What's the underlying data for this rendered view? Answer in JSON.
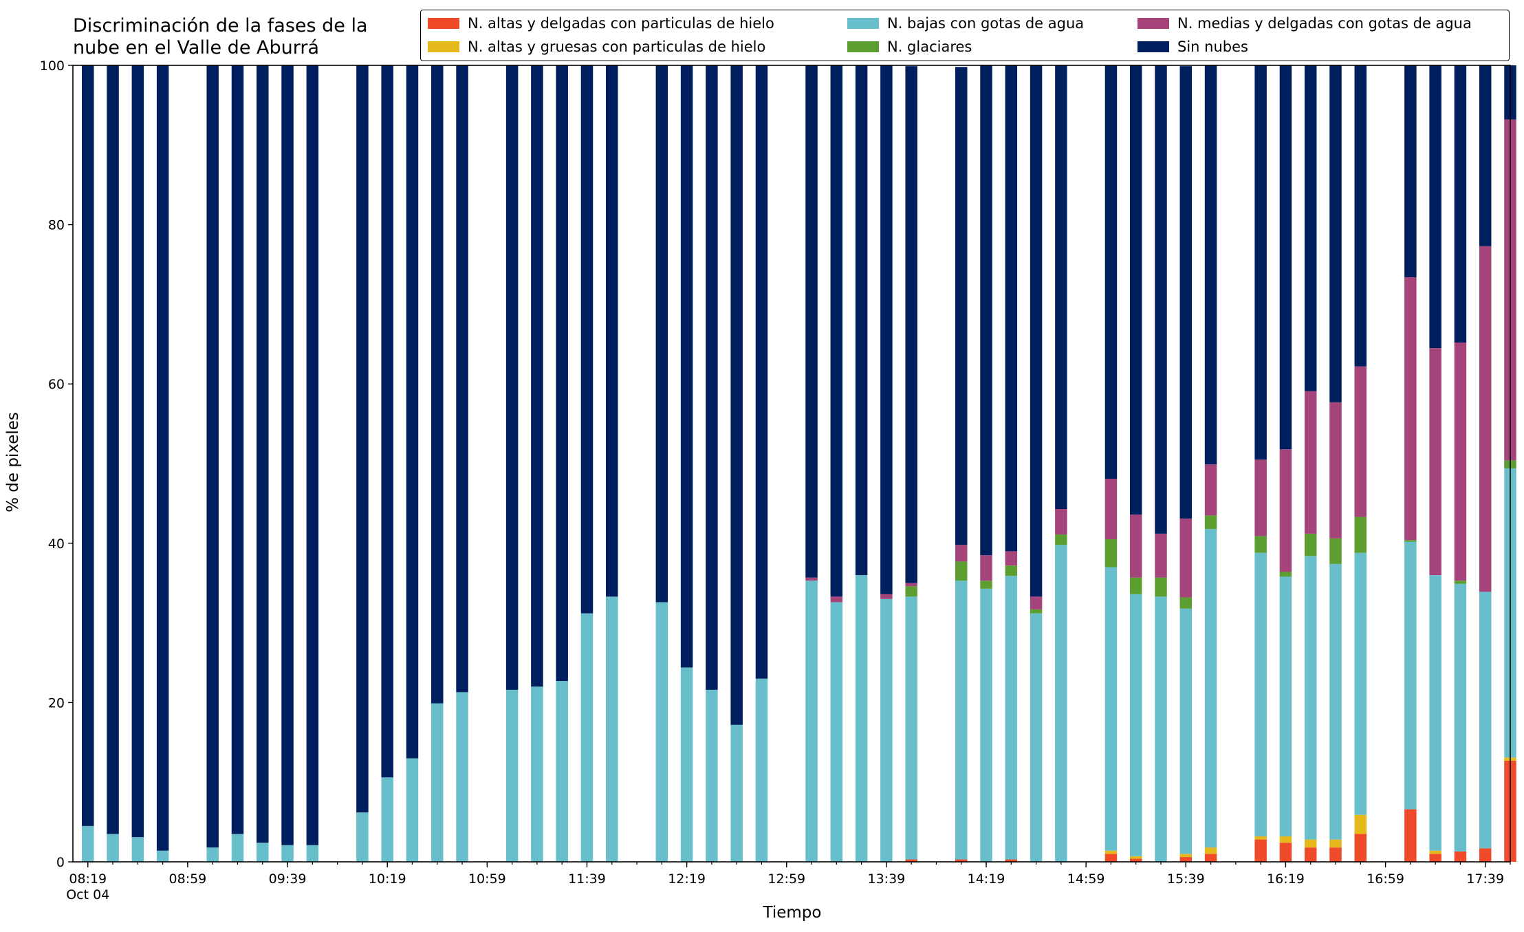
{
  "chart_data": {
    "type": "bar",
    "stacked": true,
    "title_lines": [
      "Discriminación de la fases de la",
      "nube en el Valle de Aburrá"
    ],
    "xlabel": "Tiempo",
    "ylabel": "% de pixeles",
    "ylim": [
      0,
      100
    ],
    "yticks": [
      0,
      20,
      40,
      60,
      80,
      100
    ],
    "xlim": [
      "08:13",
      "17:49"
    ],
    "x_tick_labels": [
      {
        "time": "08:19",
        "label": "08:19",
        "sublabel": "Oct 04"
      },
      {
        "time": "08:59",
        "label": "08:59"
      },
      {
        "time": "09:39",
        "label": "09:39"
      },
      {
        "time": "10:19",
        "label": "10:19"
      },
      {
        "time": "10:59",
        "label": "10:59"
      },
      {
        "time": "11:39",
        "label": "11:39"
      },
      {
        "time": "12:19",
        "label": "12:19"
      },
      {
        "time": "12:59",
        "label": "12:59"
      },
      {
        "time": "13:39",
        "label": "13:39"
      },
      {
        "time": "14:19",
        "label": "14:19"
      },
      {
        "time": "14:59",
        "label": "14:59"
      },
      {
        "time": "15:39",
        "label": "15:39"
      },
      {
        "time": "16:19",
        "label": "16:19"
      },
      {
        "time": "16:59",
        "label": "16:59"
      },
      {
        "time": "17:39",
        "label": "17:39"
      }
    ],
    "grid": false,
    "legend_position": "top-right",
    "categories": [
      "08:19",
      "08:29",
      "08:39",
      "08:49",
      "09:09",
      "09:19",
      "09:29",
      "09:39",
      "09:49",
      "10:09",
      "10:19",
      "10:29",
      "10:39",
      "10:49",
      "11:09",
      "11:19",
      "11:29",
      "11:39",
      "11:49",
      "12:09",
      "12:19",
      "12:29",
      "12:39",
      "12:49",
      "13:09",
      "13:19",
      "13:29",
      "13:39",
      "13:49",
      "14:09",
      "14:19",
      "14:29",
      "14:39",
      "14:49",
      "15:09",
      "15:19",
      "15:29",
      "15:39",
      "15:49",
      "16:09",
      "16:19",
      "16:29",
      "16:39",
      "16:49",
      "17:09",
      "17:19",
      "17:29",
      "17:39",
      "17:49"
    ],
    "series": [
      {
        "name": "N. altas y delgadas con particulas de hielo",
        "color": "#EF4B2B",
        "values": [
          0,
          0,
          0,
          0,
          0,
          0,
          0,
          0,
          0,
          0,
          0,
          0,
          0,
          0,
          0,
          0,
          0,
          0,
          0,
          0,
          0,
          0,
          0,
          0,
          0,
          0,
          0,
          0,
          0.3,
          0.3,
          0,
          0.3,
          0,
          0,
          1.0,
          0.4,
          0,
          0.6,
          1.0,
          2.8,
          2.4,
          1.8,
          1.8,
          3.5,
          6.6,
          1.0,
          1.3,
          1.7,
          12.7
        ]
      },
      {
        "name": "N. altas y gruesas con particulas de hielo",
        "color": "#E5B81C",
        "values": [
          0,
          0,
          0,
          0,
          0,
          0,
          0,
          0,
          0,
          0,
          0,
          0,
          0,
          0,
          0,
          0,
          0,
          0,
          0,
          0,
          0,
          0,
          0,
          0,
          0,
          0,
          0,
          0,
          0,
          0,
          0,
          0,
          0,
          0,
          0.4,
          0.3,
          0,
          0.4,
          0.8,
          0.4,
          0.8,
          1.0,
          1.0,
          2.4,
          0,
          0.4,
          0,
          0,
          0.4
        ]
      },
      {
        "name": "N. bajas con gotas de agua",
        "color": "#68BFCB",
        "values": [
          4.5,
          3.5,
          3.1,
          1.4,
          1.8,
          3.5,
          2.4,
          2.1,
          2.1,
          6.2,
          10.6,
          13.0,
          19.9,
          21.3,
          21.6,
          22.0,
          22.7,
          31.2,
          33.3,
          32.6,
          24.4,
          21.6,
          17.2,
          23.0,
          35.3,
          32.6,
          36.0,
          33.0,
          33.0,
          35.0,
          34.3,
          35.6,
          31.2,
          39.8,
          35.6,
          32.9,
          33.3,
          30.8,
          40.0,
          35.6,
          32.6,
          35.6,
          34.6,
          32.9,
          33.6,
          34.6,
          33.6,
          32.2,
          36.3
        ]
      },
      {
        "name": "N. glaciares",
        "color": "#5D9E31",
        "values": [
          0,
          0,
          0,
          0,
          0,
          0,
          0,
          0,
          0,
          0,
          0,
          0,
          0,
          0,
          0,
          0,
          0,
          0,
          0,
          0,
          0,
          0,
          0,
          0,
          0,
          0,
          0,
          0,
          1.3,
          2.4,
          1.0,
          1.3,
          0.5,
          1.3,
          3.5,
          2.1,
          2.4,
          1.4,
          1.7,
          2.1,
          0.6,
          2.8,
          3.2,
          4.5,
          0.2,
          0,
          0.4,
          0,
          1.0
        ]
      },
      {
        "name": "N. medias y delgadas con gotas de agua",
        "color": "#A4447A",
        "values": [
          0,
          0,
          0,
          0,
          0,
          0,
          0,
          0,
          0,
          0,
          0,
          0,
          0,
          0,
          0,
          0,
          0,
          0,
          0,
          0,
          0,
          0,
          0,
          0,
          0.4,
          0.7,
          0,
          0.6,
          0.4,
          2.1,
          3.2,
          1.8,
          1.6,
          3.2,
          7.6,
          7.9,
          5.5,
          9.9,
          6.4,
          9.6,
          15.4,
          17.9,
          17.1,
          18.9,
          33.0,
          28.5,
          29.9,
          43.4,
          42.8
        ]
      },
      {
        "name": "Sin nubes",
        "color": "#001F5F",
        "values": [
          95.5,
          96.5,
          96.9,
          98.6,
          98.2,
          96.5,
          97.6,
          97.9,
          97.9,
          93.8,
          89.4,
          87.0,
          80.1,
          78.7,
          78.4,
          78.0,
          77.3,
          68.8,
          66.7,
          67.4,
          75.6,
          78.4,
          82.8,
          77.0,
          64.3,
          66.7,
          64.0,
          66.4,
          64.9,
          60.0,
          61.5,
          61.0,
          66.7,
          55.7,
          51.9,
          56.4,
          58.8,
          56.8,
          50.1,
          49.5,
          48.2,
          40.9,
          42.3,
          37.8,
          26.6,
          35.5,
          34.8,
          22.7,
          6.8
        ]
      }
    ]
  }
}
